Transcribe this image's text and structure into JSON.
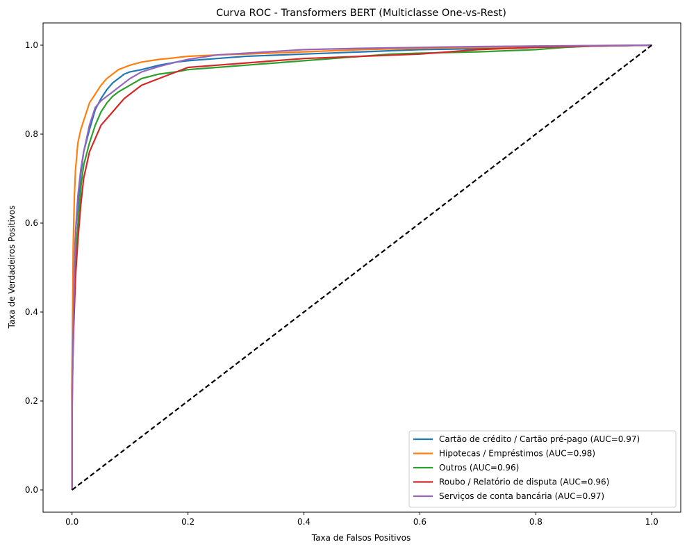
{
  "chart_data": {
    "type": "line",
    "title": "Curva ROC - Transformers BERT (Multiclasse One-vs-Rest)",
    "xlabel": "Taxa de Falsos Positivos",
    "ylabel": "Taxa de Verdadeiros Positivos",
    "xlim": [
      -0.05,
      1.05
    ],
    "ylim": [
      -0.05,
      1.05
    ],
    "xticks": [
      "0.0",
      "0.2",
      "0.4",
      "0.6",
      "0.8",
      "1.0"
    ],
    "yticks": [
      "0.0",
      "0.2",
      "0.4",
      "0.6",
      "0.8",
      "1.0"
    ],
    "legend_position": "lower-right",
    "series": [
      {
        "name": "Cartão de crédito / Cartão pré-pago (AUC=0.97)",
        "color": "#1f77b4",
        "x": [
          0,
          0,
          0.002,
          0.004,
          0.006,
          0.01,
          0.015,
          0.02,
          0.03,
          0.04,
          0.05,
          0.06,
          0.07,
          0.08,
          0.09,
          0.1,
          0.12,
          0.15,
          0.18,
          0.2,
          0.25,
          0.3,
          0.4,
          0.5,
          0.6,
          0.7,
          0.8,
          0.9,
          1.0
        ],
        "y": [
          0,
          0.17,
          0.38,
          0.5,
          0.58,
          0.64,
          0.71,
          0.76,
          0.81,
          0.855,
          0.88,
          0.9,
          0.915,
          0.925,
          0.935,
          0.94,
          0.945,
          0.955,
          0.962,
          0.965,
          0.97,
          0.975,
          0.98,
          0.985,
          0.99,
          0.992,
          0.995,
          0.998,
          1.0
        ]
      },
      {
        "name": "Hipotecas / Empréstimos (AUC=0.98)",
        "color": "#ff7f0e",
        "x": [
          0,
          0,
          0.002,
          0.004,
          0.006,
          0.01,
          0.015,
          0.02,
          0.025,
          0.03,
          0.04,
          0.05,
          0.06,
          0.07,
          0.08,
          0.09,
          0.1,
          0.12,
          0.15,
          0.18,
          0.2,
          0.25,
          0.3,
          0.4,
          0.5,
          0.6,
          0.7,
          0.8,
          0.9,
          1.0
        ],
        "y": [
          0,
          0.27,
          0.55,
          0.66,
          0.72,
          0.78,
          0.81,
          0.83,
          0.85,
          0.87,
          0.89,
          0.91,
          0.925,
          0.935,
          0.945,
          0.95,
          0.955,
          0.962,
          0.968,
          0.972,
          0.975,
          0.978,
          0.98,
          0.985,
          0.99,
          0.993,
          0.995,
          0.997,
          0.999,
          1.0
        ]
      },
      {
        "name": "Outros (AUC=0.96)",
        "color": "#2ca02c",
        "x": [
          0,
          0,
          0.002,
          0.005,
          0.008,
          0.012,
          0.016,
          0.02,
          0.03,
          0.04,
          0.05,
          0.06,
          0.07,
          0.08,
          0.1,
          0.12,
          0.15,
          0.18,
          0.2,
          0.25,
          0.3,
          0.35,
          0.4,
          0.45,
          0.5,
          0.55,
          0.6,
          0.7,
          0.8,
          0.85,
          0.9,
          1.0
        ],
        "y": [
          0,
          0.2,
          0.35,
          0.47,
          0.56,
          0.63,
          0.69,
          0.73,
          0.78,
          0.82,
          0.85,
          0.87,
          0.885,
          0.895,
          0.91,
          0.925,
          0.935,
          0.94,
          0.945,
          0.95,
          0.955,
          0.96,
          0.965,
          0.97,
          0.975,
          0.98,
          0.982,
          0.985,
          0.99,
          0.995,
          0.998,
          1.0
        ]
      },
      {
        "name": "Roubo / Relatório de disputa (AUC=0.96)",
        "color": "#d62728",
        "x": [
          0,
          0,
          0.003,
          0.006,
          0.01,
          0.015,
          0.02,
          0.03,
          0.04,
          0.05,
          0.06,
          0.07,
          0.08,
          0.09,
          0.1,
          0.12,
          0.15,
          0.18,
          0.2,
          0.25,
          0.3,
          0.35,
          0.4,
          0.5,
          0.6,
          0.7,
          0.8,
          0.9,
          1.0
        ],
        "y": [
          0,
          0.23,
          0.37,
          0.48,
          0.56,
          0.64,
          0.7,
          0.76,
          0.79,
          0.82,
          0.835,
          0.85,
          0.865,
          0.88,
          0.89,
          0.91,
          0.925,
          0.94,
          0.95,
          0.955,
          0.96,
          0.965,
          0.97,
          0.975,
          0.98,
          0.99,
          0.995,
          0.998,
          1.0
        ]
      },
      {
        "name": "Serviços de conta bancária (AUC=0.97)",
        "color": "#9467bd",
        "x": [
          0,
          0,
          0.002,
          0.004,
          0.006,
          0.01,
          0.015,
          0.02,
          0.03,
          0.04,
          0.05,
          0.06,
          0.07,
          0.08,
          0.1,
          0.12,
          0.15,
          0.18,
          0.2,
          0.25,
          0.3,
          0.35,
          0.4,
          0.5,
          0.6,
          0.7,
          0.8,
          0.9,
          1.0
        ],
        "y": [
          0,
          0.17,
          0.35,
          0.49,
          0.58,
          0.66,
          0.72,
          0.76,
          0.82,
          0.86,
          0.875,
          0.885,
          0.895,
          0.905,
          0.925,
          0.94,
          0.952,
          0.962,
          0.968,
          0.978,
          0.982,
          0.986,
          0.99,
          0.993,
          0.995,
          0.997,
          0.998,
          0.999,
          1.0
        ]
      },
      {
        "name": "",
        "color": "#000000",
        "dashed": true,
        "x": [
          0,
          1
        ],
        "y": [
          0,
          1
        ]
      }
    ]
  }
}
